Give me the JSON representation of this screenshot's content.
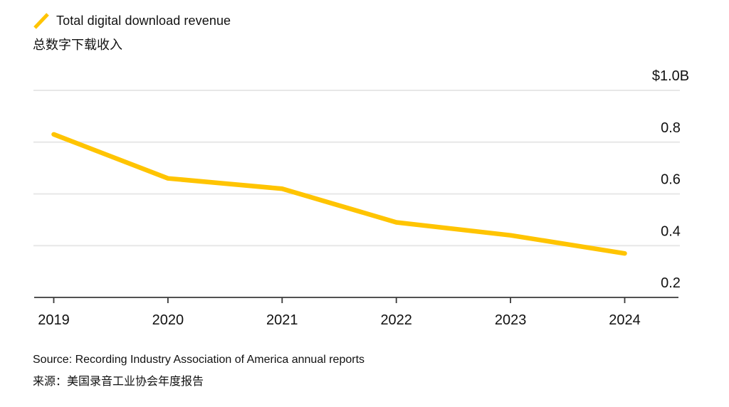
{
  "legend": {
    "label": "Total digital download revenue",
    "label_zh": "总数字下载收入"
  },
  "source": {
    "english": "Source: Recording Industry Association of America annual reports",
    "chinese": "来源：美国录音工业协会年度报告"
  },
  "colors": {
    "line": "#FFC400",
    "grid": "#E7E7E7",
    "axis": "#3A3A3A",
    "text": "#111111"
  },
  "chart_data": {
    "type": "line",
    "x": [
      2019,
      2020,
      2021,
      2022,
      2023,
      2024
    ],
    "xtick_labels": [
      "2019",
      "2020",
      "2021",
      "2022",
      "2023",
      "2024"
    ],
    "series": [
      {
        "name": "Total digital download revenue",
        "name_zh": "总数字下载收入",
        "values": [
          0.83,
          0.66,
          0.62,
          0.49,
          0.44,
          0.37
        ]
      }
    ],
    "unit": "USD billions",
    "title": "",
    "xlabel": "",
    "ylabel": "",
    "ylim": [
      0.2,
      1.0
    ],
    "yticks": [
      0.2,
      0.4,
      0.6,
      0.8,
      1.0
    ],
    "ytick_labels": [
      "0.2",
      "0.4",
      "0.6",
      "0.8",
      "$1.0B"
    ],
    "grid": "horizontal",
    "legend_position": "top-left",
    "axis_label_side": "right"
  }
}
